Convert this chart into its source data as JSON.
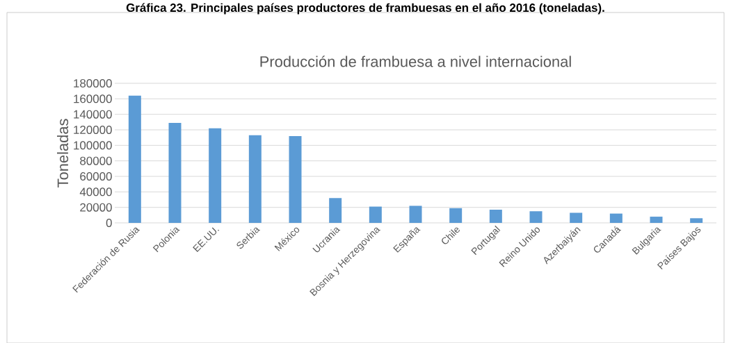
{
  "chart_data": {
    "type": "bar",
    "title": "Producción de frambuesa a nivel internacional",
    "annotations": [
      "Gráfica 23. Principales países productores de frambuesas en el año 2016 (toneladas)."
    ],
    "ylabel": "Toneladas",
    "categories": [
      "Federación de Rusia",
      "Polonia",
      "EE.UU.",
      "Serbia",
      "México",
      "Ucrania",
      "Bosnia y Herzegovina",
      "España",
      "Chile",
      "Portugal",
      "Reino Unido",
      "Azerbaiyán",
      "Canadá",
      "Bulgaria",
      "Países Bajos"
    ],
    "values": [
      164000,
      129000,
      122000,
      113000,
      112000,
      32000,
      21000,
      22000,
      19000,
      17000,
      15000,
      13000,
      12000,
      8000,
      6000
    ],
    "color": "#5b9bd5",
    "ylim": [
      0,
      180000
    ],
    "yticks": [
      0,
      20000,
      40000,
      60000,
      80000,
      100000,
      120000,
      140000,
      160000,
      180000
    ],
    "grid": "y"
  }
}
